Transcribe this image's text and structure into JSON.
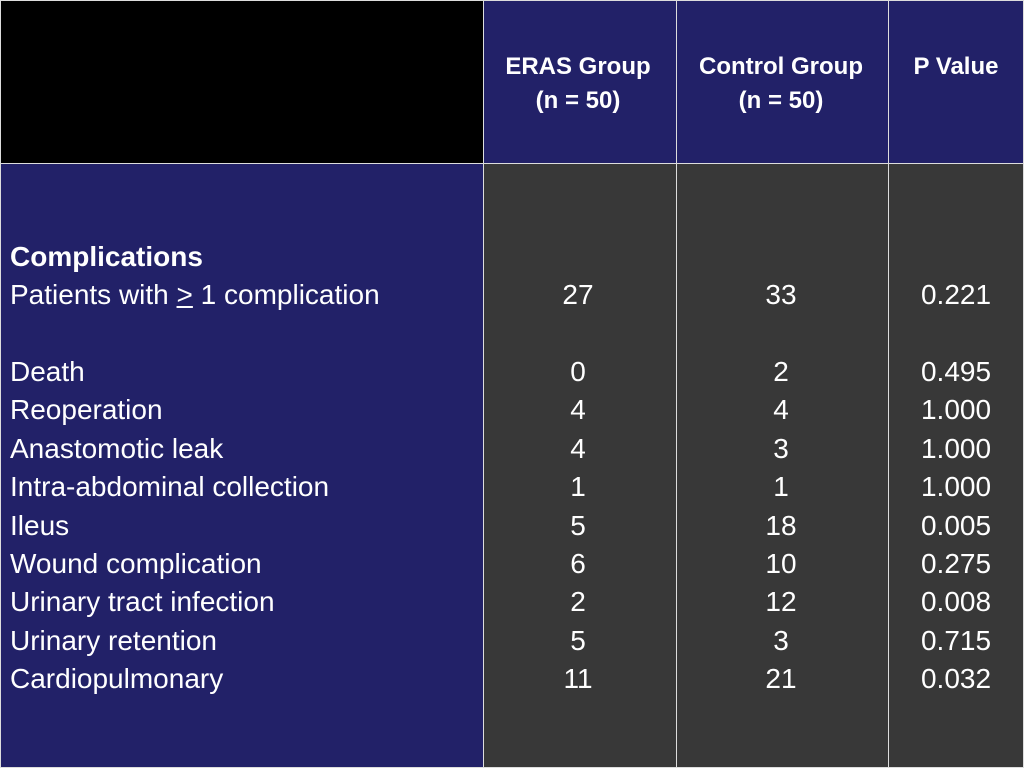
{
  "table": {
    "header": [
      [
        "ERAS Group",
        "(n = 50)"
      ],
      [
        "Control Group",
        "(n = 50)"
      ],
      [
        "P Value"
      ]
    ],
    "section": "Complications",
    "rows": [
      {
        "label": [
          "Patients with ",
          ">",
          " 1 complication"
        ],
        "cells": [
          "27",
          "33",
          "0.221"
        ]
      },
      {
        "label": [
          "Death"
        ],
        "cells": [
          "0",
          "2",
          "0.495"
        ]
      },
      {
        "label": [
          "Reoperation"
        ],
        "cells": [
          "4",
          "4",
          "1.000"
        ]
      },
      {
        "label": [
          "Anastomotic leak"
        ],
        "cells": [
          "4",
          "3",
          "1.000"
        ]
      },
      {
        "label": [
          "Intra-abdominal collection"
        ],
        "cells": [
          "1",
          "1",
          "1.000"
        ]
      },
      {
        "label": [
          "Ileus"
        ],
        "cells": [
          "5",
          "18",
          "0.005"
        ]
      },
      {
        "label": [
          "Wound complication"
        ],
        "cells": [
          "6",
          "10",
          "0.275"
        ]
      },
      {
        "label": [
          "Urinary tract infection"
        ],
        "cells": [
          "2",
          "12",
          "0.008"
        ]
      },
      {
        "label": [
          "Urinary retention"
        ],
        "cells": [
          "5",
          "3",
          "0.715"
        ]
      },
      {
        "label": [
          "Cardiopulmonary"
        ],
        "cells": [
          "11",
          "21",
          "0.032"
        ]
      }
    ]
  }
}
